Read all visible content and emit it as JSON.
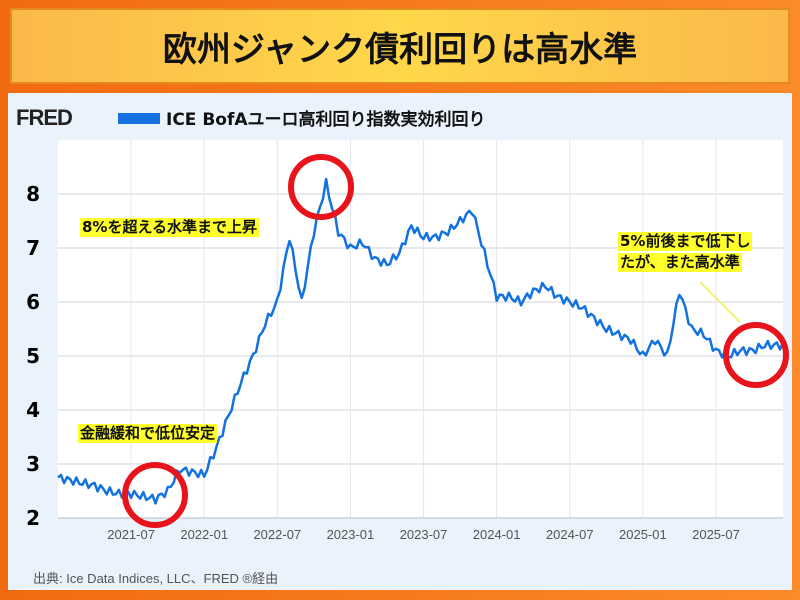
{
  "title": "欧州ジャンク債利回りは高水準",
  "logo": "FRED",
  "legend": "ICE BofAユーロ高利回り指数実効利回り",
  "source": "出典: Ice Data Indices, LLC、FRED ®経由",
  "annotations": [
    "8%を超える水準まで上昇",
    "金融緩和で低位安定",
    "5%前後まで低下し",
    "たが、また高水準"
  ],
  "colors": {
    "line": "#1372e0",
    "circle": "#e8141c",
    "highlight": "#ffff2a"
  },
  "chart_data": {
    "type": "line",
    "title": "ICE BofAユーロ高利回り指数実効利回り",
    "xlabel": "",
    "ylabel": "",
    "xlim": [
      "2021-01",
      "2025-12"
    ],
    "ylim": [
      2,
      9
    ],
    "yticks": [
      2,
      3,
      4,
      5,
      6,
      7,
      8
    ],
    "xticks": [
      "2021-07",
      "2022-01",
      "2022-07",
      "2023-01",
      "2023-07",
      "2024-01",
      "2024-07",
      "2025-01",
      "2025-07"
    ],
    "grid": true,
    "series": [
      {
        "name": "ICE BofAユーロ高利回り指数実効利回り",
        "start": "2021-01",
        "freq": "monthly",
        "values": [
          2.75,
          2.7,
          2.65,
          2.6,
          2.5,
          2.45,
          2.45,
          2.4,
          2.35,
          2.5,
          2.9,
          2.85,
          2.8,
          3.3,
          3.9,
          4.5,
          5.0,
          5.6,
          6.0,
          7.2,
          6.0,
          7.3,
          8.2,
          7.3,
          7.0,
          7.1,
          6.8,
          6.7,
          6.9,
          7.4,
          7.2,
          7.2,
          7.3,
          7.5,
          7.7,
          6.9,
          6.1,
          6.1,
          6.0,
          6.2,
          6.3,
          6.1,
          6.0,
          5.9,
          5.7,
          5.5,
          5.4,
          5.3,
          5.0,
          5.3,
          5.0,
          6.2,
          5.5,
          5.4,
          5.1,
          5.0,
          5.1,
          5.1,
          5.2,
          5.2
        ]
      }
    ]
  }
}
